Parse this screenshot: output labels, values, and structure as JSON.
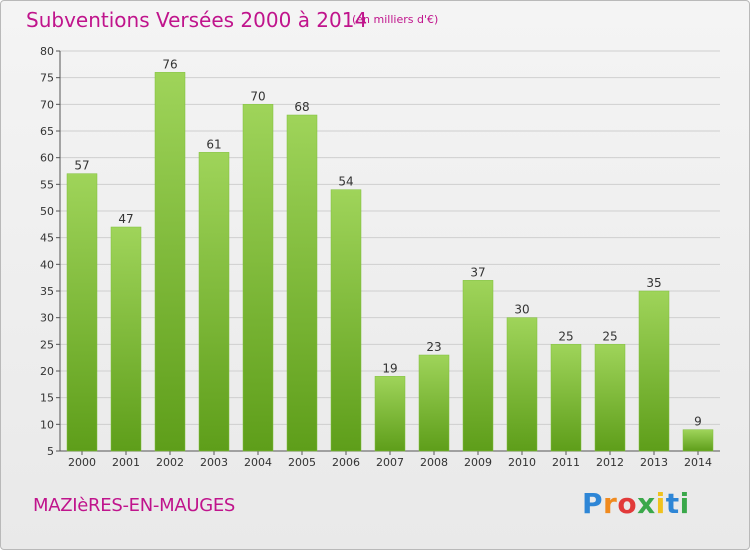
{
  "header": {
    "title": "Subventions Versées 2000 à 2014",
    "subtitle": "(en milliers d'€)"
  },
  "footer": {
    "commune": "MAZIèRES-EN-MAUGES",
    "logo": "Proxiti"
  },
  "colors": {
    "title": "#c0148c",
    "bar_light": "#9fd45a",
    "bar_dark": "#5e9e1a",
    "grid": "#cfcfcf"
  },
  "chart_data": {
    "type": "bar",
    "title": "Subventions Versées 2000 à 2014",
    "subtitle": "(en milliers d'€)",
    "xlabel": "",
    "ylabel": "",
    "categories": [
      "2000",
      "2001",
      "2002",
      "2003",
      "2004",
      "2005",
      "2006",
      "2007",
      "2008",
      "2009",
      "2010",
      "2011",
      "2012",
      "2013",
      "2014"
    ],
    "values": [
      57,
      47,
      76,
      61,
      70,
      68,
      54,
      19,
      23,
      37,
      30,
      25,
      25,
      35,
      9
    ],
    "ylim": [
      5,
      80
    ],
    "yticks": [
      5,
      10,
      15,
      20,
      25,
      30,
      35,
      40,
      45,
      50,
      55,
      60,
      65,
      70,
      75,
      80
    ],
    "grid": true,
    "legend": "none"
  }
}
